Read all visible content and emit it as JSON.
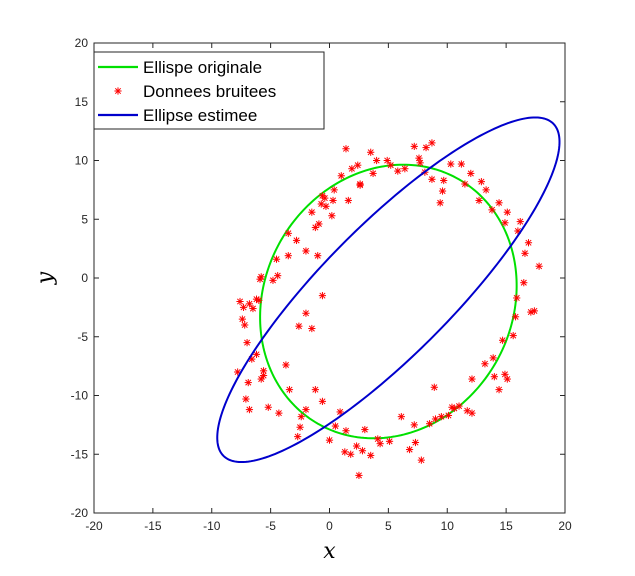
{
  "chart_data": {
    "type": "scatter",
    "title": "",
    "xlabel": "x",
    "ylabel": "y",
    "xlim": [
      -20,
      20
    ],
    "ylim": [
      -20,
      20
    ],
    "xticks": [
      -20,
      -15,
      -10,
      -5,
      0,
      5,
      10,
      15,
      20
    ],
    "yticks": [
      -20,
      -15,
      -10,
      -5,
      0,
      5,
      10,
      15,
      20
    ],
    "grid": false,
    "legend_position": "top-left",
    "series": [
      {
        "name": "Ellispe originale",
        "kind": "ellipse",
        "color": "#00e000",
        "center": [
          5.0,
          -2.0
        ],
        "semi_axes": [
          12.0,
          10.5
        ],
        "rotation_deg": 60
      },
      {
        "name": "Donnees bruitees",
        "kind": "scatter",
        "color": "#ff0000",
        "marker": "asterisk",
        "points": [
          [
            -7.6,
            -2.0
          ],
          [
            -7.4,
            -3.5
          ],
          [
            -7.2,
            -4.0
          ],
          [
            -7.0,
            -5.5
          ],
          [
            -7.8,
            -8.0
          ],
          [
            -7.3,
            -2.5
          ],
          [
            -6.8,
            -2.2
          ],
          [
            -6.5,
            -2.6
          ],
          [
            -6.2,
            -1.8
          ],
          [
            -6.0,
            -1.9
          ],
          [
            -5.9,
            -0.1
          ],
          [
            -5.8,
            0.1
          ],
          [
            -4.8,
            -0.2
          ],
          [
            -4.4,
            0.2
          ],
          [
            -4.5,
            1.6
          ],
          [
            -3.5,
            1.9
          ],
          [
            -3.5,
            3.8
          ],
          [
            -2.8,
            3.2
          ],
          [
            -2.0,
            2.3
          ],
          [
            -1.5,
            5.6
          ],
          [
            -1.2,
            4.3
          ],
          [
            -0.9,
            4.6
          ],
          [
            -0.6,
            7.0
          ],
          [
            -0.4,
            6.8
          ],
          [
            -0.7,
            6.3
          ],
          [
            -0.3,
            6.1
          ],
          [
            0.2,
            5.3
          ],
          [
            0.3,
            6.6
          ],
          [
            -1.0,
            1.9
          ],
          [
            -0.6,
            -1.5
          ],
          [
            -1.5,
            -4.3
          ],
          [
            -2.0,
            -3.0
          ],
          [
            -2.6,
            -4.1
          ],
          [
            -3.7,
            -7.4
          ],
          [
            -3.4,
            -9.5
          ],
          [
            -4.3,
            -11.5
          ],
          [
            -5.2,
            -11.0
          ],
          [
            -5.6,
            -8.3
          ],
          [
            -5.6,
            -7.9
          ],
          [
            -5.8,
            -8.6
          ],
          [
            -6.8,
            -11.2
          ],
          [
            -7.1,
            -10.3
          ],
          [
            -6.9,
            -8.9
          ],
          [
            -6.6,
            -6.9
          ],
          [
            -6.2,
            -6.5
          ],
          [
            -2.4,
            -11.8
          ],
          [
            -2.5,
            -12.7
          ],
          [
            -2.7,
            -13.5
          ],
          [
            -2.0,
            -11.2
          ],
          [
            -1.2,
            -9.5
          ],
          [
            -0.6,
            -10.5
          ],
          [
            0.5,
            -12.6
          ],
          [
            0.0,
            -13.8
          ],
          [
            0.9,
            -11.4
          ],
          [
            1.4,
            -13.0
          ],
          [
            1.3,
            -14.8
          ],
          [
            1.8,
            -15.0
          ],
          [
            2.3,
            -14.3
          ],
          [
            2.5,
            -16.8
          ],
          [
            2.8,
            -14.7
          ],
          [
            3.0,
            -12.9
          ],
          [
            3.5,
            -15.1
          ],
          [
            4.1,
            -13.7
          ],
          [
            4.3,
            -14.1
          ],
          [
            5.1,
            -13.9
          ],
          [
            6.1,
            -11.8
          ],
          [
            6.8,
            -14.6
          ],
          [
            7.3,
            -14.0
          ],
          [
            7.8,
            -15.5
          ],
          [
            7.2,
            -12.5
          ],
          [
            8.5,
            -12.4
          ],
          [
            9.0,
            -12.0
          ],
          [
            9.5,
            -11.8
          ],
          [
            10.1,
            -11.7
          ],
          [
            10.6,
            -11.1
          ],
          [
            11.0,
            -10.9
          ],
          [
            11.7,
            -11.3
          ],
          [
            12.1,
            -11.5
          ],
          [
            13.2,
            -7.3
          ],
          [
            13.9,
            -6.8
          ],
          [
            14.0,
            -8.4
          ],
          [
            14.4,
            -9.5
          ],
          [
            15.1,
            -8.6
          ],
          [
            14.9,
            -8.2
          ],
          [
            14.7,
            -5.3
          ],
          [
            15.6,
            -4.9
          ],
          [
            15.8,
            -3.3
          ],
          [
            15.9,
            -1.7
          ],
          [
            16.5,
            -0.4
          ],
          [
            17.1,
            -2.9
          ],
          [
            17.4,
            -2.8
          ],
          [
            17.8,
            1.0
          ],
          [
            16.6,
            2.1
          ],
          [
            16.9,
            3.0
          ],
          [
            16.0,
            4.0
          ],
          [
            16.2,
            4.8
          ],
          [
            15.1,
            5.6
          ],
          [
            14.9,
            4.7
          ],
          [
            14.4,
            6.4
          ],
          [
            13.8,
            5.8
          ],
          [
            13.3,
            7.5
          ],
          [
            12.9,
            8.2
          ],
          [
            12.0,
            8.9
          ],
          [
            11.2,
            9.7
          ],
          [
            10.3,
            9.7
          ],
          [
            9.7,
            8.3
          ],
          [
            8.7,
            8.4
          ],
          [
            8.1,
            9.0
          ],
          [
            7.7,
            9.8
          ],
          [
            7.2,
            11.2
          ],
          [
            6.4,
            9.3
          ],
          [
            5.8,
            9.1
          ],
          [
            5.2,
            9.6
          ],
          [
            4.9,
            10.0
          ],
          [
            4.0,
            10.0
          ],
          [
            3.5,
            10.7
          ],
          [
            3.7,
            8.9
          ],
          [
            2.4,
            9.6
          ],
          [
            2.6,
            8.0
          ],
          [
            1.9,
            9.3
          ],
          [
            1.4,
            11.0
          ],
          [
            1.0,
            8.7
          ],
          [
            0.4,
            7.5
          ],
          [
            1.6,
            6.6
          ],
          [
            2.6,
            7.9
          ],
          [
            9.4,
            6.4
          ],
          [
            9.6,
            7.4
          ],
          [
            11.5,
            8.0
          ],
          [
            12.7,
            6.6
          ],
          [
            8.7,
            11.5
          ],
          [
            8.2,
            11.1
          ],
          [
            7.6,
            10.2
          ],
          [
            8.9,
            -9.3
          ],
          [
            10.4,
            -11.0
          ],
          [
            12.1,
            -8.6
          ]
        ]
      },
      {
        "name": "Ellipse estimee",
        "kind": "ellipse",
        "color": "#0000cc",
        "center": [
          5.0,
          -1.0
        ],
        "semi_axes": [
          19.9,
          5.5
        ],
        "rotation_deg": 45.3
      }
    ]
  }
}
